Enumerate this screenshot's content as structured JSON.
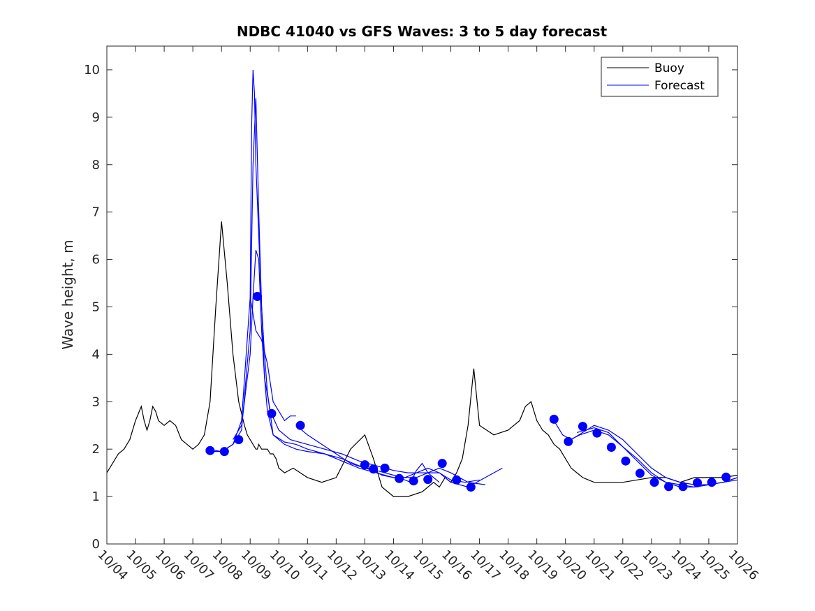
{
  "chart_data": {
    "type": "line",
    "title": "NDBC 41040 vs GFS Waves: 3 to 5 day forecast",
    "xlabel": "",
    "ylabel": "Wave height, m",
    "xlim": [
      0,
      22
    ],
    "ylim": [
      0,
      10.5
    ],
    "x_ticks": [
      "10/04",
      "10/05",
      "10/06",
      "10/07",
      "10/08",
      "10/09",
      "10/10",
      "10/11",
      "10/12",
      "10/13",
      "10/14",
      "10/15",
      "10/16",
      "10/17",
      "10/18",
      "10/19",
      "10/20",
      "10/21",
      "10/22",
      "10/23",
      "10/24",
      "10/25",
      "10/26"
    ],
    "y_ticks": [
      0,
      1,
      2,
      3,
      4,
      5,
      6,
      7,
      8,
      9,
      10
    ],
    "grid": false,
    "legend": {
      "placement": "top-right",
      "entries": [
        "Buoy",
        "Forecast"
      ]
    },
    "colors": {
      "buoy": "#000000",
      "forecast": "#0000ff",
      "axis": "#262626"
    },
    "series": [
      {
        "name": "Buoy",
        "x": [
          0,
          0.2,
          0.4,
          0.6,
          0.8,
          1.0,
          1.2,
          1.3,
          1.4,
          1.5,
          1.6,
          1.7,
          1.8,
          2.0,
          2.2,
          2.4,
          2.6,
          2.8,
          3.0,
          3.2,
          3.4,
          3.6,
          3.8,
          4.0,
          4.2,
          4.4,
          4.6,
          4.8,
          4.9,
          5.0,
          5.1,
          5.2,
          5.25,
          5.3,
          5.4,
          5.5,
          5.6,
          5.7,
          5.8,
          5.9,
          6.0,
          6.2,
          6.5,
          7.0,
          7.5,
          8.0,
          8.5,
          9.0,
          9.3,
          9.6,
          10.0,
          10.5,
          11.0,
          11.2,
          11.4,
          11.6,
          11.7,
          11.8,
          12.0,
          12.2,
          12.4,
          12.6,
          12.8,
          13.0,
          13.5,
          14.0,
          14.4,
          14.6,
          14.8,
          14.9,
          15.0,
          15.1,
          15.2,
          15.4,
          15.6,
          15.8,
          16.0,
          16.2,
          16.4,
          16.6,
          16.8,
          17.0,
          17.5,
          18.0,
          18.5,
          19.0,
          19.5,
          20.0,
          20.5,
          21.0,
          21.5,
          22.0
        ],
        "y": [
          1.5,
          1.7,
          1.9,
          2.0,
          2.2,
          2.6,
          2.9,
          2.6,
          2.4,
          2.6,
          2.9,
          2.8,
          2.6,
          2.5,
          2.6,
          2.5,
          2.2,
          2.1,
          2.0,
          2.1,
          2.3,
          3.0,
          5.0,
          6.8,
          5.5,
          4.0,
          3.0,
          2.5,
          2.3,
          2.2,
          2.1,
          2.0,
          2.0,
          2.1,
          2.0,
          2.0,
          2.0,
          1.9,
          1.9,
          1.8,
          1.6,
          1.5,
          1.6,
          1.4,
          1.3,
          1.4,
          2.0,
          2.3,
          1.8,
          1.2,
          1.0,
          1.0,
          1.1,
          1.2,
          1.3,
          1.2,
          1.3,
          1.4,
          1.3,
          1.5,
          1.8,
          2.5,
          3.7,
          2.5,
          2.3,
          2.4,
          2.6,
          2.9,
          3.0,
          2.8,
          2.6,
          2.5,
          2.4,
          2.3,
          2.1,
          2.0,
          1.8,
          1.6,
          1.5,
          1.4,
          1.35,
          1.3,
          1.3,
          1.3,
          1.35,
          1.4,
          1.4,
          1.3,
          1.4,
          1.4,
          1.4,
          1.45
        ]
      },
      {
        "name": "Forecast",
        "lines": [
          {
            "x": [
              3.5,
              4.0,
              4.4,
              4.7,
              5.0,
              5.05,
              5.1,
              5.15,
              5.2,
              5.3,
              5.4,
              5.5,
              5.6,
              5.8,
              6.2,
              6.6,
              7.0,
              7.6,
              8.2,
              8.8,
              9.4,
              10.0,
              10.4,
              10.6,
              10.8,
              11.0,
              11.2,
              11.6
            ],
            "y": [
              2.0,
              1.95,
              2.1,
              2.6,
              5.2,
              8.8,
              10.0,
              9.5,
              8.0,
              6.5,
              5.0,
              4.0,
              3.2,
              2.3,
              2.1,
              2.0,
              1.95,
              1.9,
              1.75,
              1.6,
              1.5,
              1.4,
              1.35,
              1.3,
              1.55,
              1.7,
              1.5,
              1.3
            ]
          },
          {
            "x": [
              3.5,
              4.0,
              4.4,
              4.7,
              5.0,
              5.1,
              5.2,
              5.3,
              5.4,
              5.5,
              5.6,
              5.8,
              6.2,
              6.6,
              7.0,
              7.6,
              8.2,
              8.8,
              9.4,
              10.0,
              10.4,
              10.8,
              11.2,
              11.6,
              12.0,
              12.6,
              13.2
            ],
            "y": [
              1.95,
              1.95,
              2.1,
              2.4,
              4.5,
              8.0,
              9.4,
              7.0,
              5.0,
              3.5,
              2.8,
              2.3,
              2.15,
              2.1,
              2.0,
              1.9,
              1.8,
              1.65,
              1.55,
              1.45,
              1.4,
              1.4,
              1.5,
              1.6,
              1.5,
              1.3,
              1.25
            ]
          },
          {
            "x": [
              4.4,
              4.7,
              5.0,
              5.1,
              5.2,
              5.3,
              5.4,
              5.5,
              5.7,
              6.0,
              6.4,
              7.0,
              7.6,
              8.2,
              8.8,
              9.4,
              10.0,
              10.5,
              11.0,
              11.3,
              11.6,
              12.0,
              12.6,
              13.2,
              13.8
            ],
            "y": [
              2.2,
              2.5,
              4.0,
              5.2,
              6.2,
              6.0,
              4.5,
              3.5,
              2.8,
              2.4,
              2.2,
              2.1,
              2.0,
              1.9,
              1.75,
              1.65,
              1.55,
              1.5,
              1.5,
              1.5,
              1.5,
              1.3,
              1.2,
              1.4,
              1.6
            ]
          },
          {
            "x": [
              5.0,
              5.2,
              5.4,
              5.6,
              5.8,
              6.0,
              6.2,
              6.4,
              6.6
            ],
            "y": [
              5.2,
              4.5,
              4.3,
              3.8,
              3.0,
              2.8,
              2.6,
              2.7,
              2.7
            ]
          },
          {
            "x": [
              6.6,
              7.0,
              7.5,
              8.0,
              8.5,
              9.0,
              9.3,
              9.6,
              10.0,
              10.4,
              10.8,
              11.2,
              11.6,
              12.0,
              12.5,
              13.0
            ],
            "y": [
              2.5,
              2.3,
              2.1,
              1.9,
              1.7,
              1.6,
              1.55,
              1.45,
              1.4,
              1.4,
              1.5,
              1.6,
              1.5,
              1.35,
              1.3,
              1.35
            ]
          },
          {
            "x": [
              15.6,
              15.9,
              16.2,
              16.6,
              17.0,
              17.5,
              18.0,
              18.5,
              19.0,
              19.5,
              20.0,
              20.5,
              21.0,
              21.5,
              22.0
            ],
            "y": [
              2.6,
              2.3,
              2.2,
              2.35,
              2.5,
              2.4,
              2.2,
              1.9,
              1.6,
              1.4,
              1.3,
              1.25,
              1.25,
              1.3,
              1.4
            ]
          },
          {
            "x": [
              16.0,
              16.5,
              17.0,
              17.5,
              18.0,
              18.5,
              19.0,
              19.5,
              20.0,
              20.5,
              21.0,
              21.5,
              22.0
            ],
            "y": [
              2.15,
              2.3,
              2.4,
              2.3,
              2.05,
              1.75,
              1.45,
              1.3,
              1.2,
              1.2,
              1.25,
              1.3,
              1.35
            ]
          },
          {
            "x": [
              16.4,
              17.0,
              17.5,
              18.0,
              18.5,
              19.0,
              19.5,
              20.0,
              20.5,
              21.0,
              21.5,
              22.0
            ],
            "y": [
              2.35,
              2.45,
              2.35,
              2.05,
              1.8,
              1.5,
              1.3,
              1.25,
              1.2,
              1.25,
              1.3,
              1.4
            ]
          }
        ],
        "markers": {
          "x": [
            3.6,
            4.1,
            4.6,
            5.25,
            5.75,
            6.75,
            9.0,
            9.3,
            9.7,
            10.2,
            10.7,
            11.2,
            11.7,
            12.2,
            12.7,
            15.6,
            16.1,
            16.6,
            17.1,
            17.6,
            18.1,
            18.6,
            19.1,
            19.6,
            20.1,
            20.6,
            21.1,
            21.6
          ],
          "y": [
            1.97,
            1.95,
            2.2,
            5.22,
            2.75,
            2.5,
            1.67,
            1.58,
            1.6,
            1.38,
            1.33,
            1.36,
            1.7,
            1.35,
            1.2,
            2.63,
            2.16,
            2.48,
            2.34,
            2.04,
            1.75,
            1.49,
            1.3,
            1.21,
            1.21,
            1.29,
            1.3,
            1.41
          ]
        }
      }
    ]
  }
}
